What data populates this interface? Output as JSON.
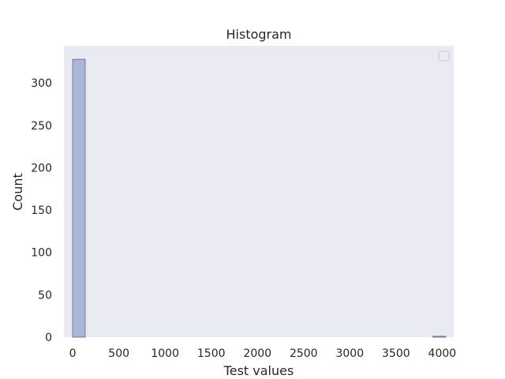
{
  "chart_data": {
    "type": "bar",
    "title": "Histogram",
    "xlabel": "Test values",
    "ylabel": "Count",
    "xlim": [
      -95,
      4125
    ],
    "ylim": [
      0,
      344
    ],
    "xticks": [
      0,
      500,
      1000,
      1500,
      2000,
      2500,
      3000,
      3500,
      4000
    ],
    "yticks": [
      0,
      50,
      100,
      150,
      200,
      250,
      300
    ],
    "bins": [
      {
        "x0": 0,
        "x1": 135,
        "count": 328
      },
      {
        "x0": 3900,
        "x1": 4040,
        "count": 1
      }
    ],
    "bar_color": "#aab7d6",
    "bar_edge_color": "#6e7a99",
    "plot_background": "#eaeaf2",
    "grid": false,
    "legend": {
      "placement": "top-right",
      "entries": []
    }
  }
}
